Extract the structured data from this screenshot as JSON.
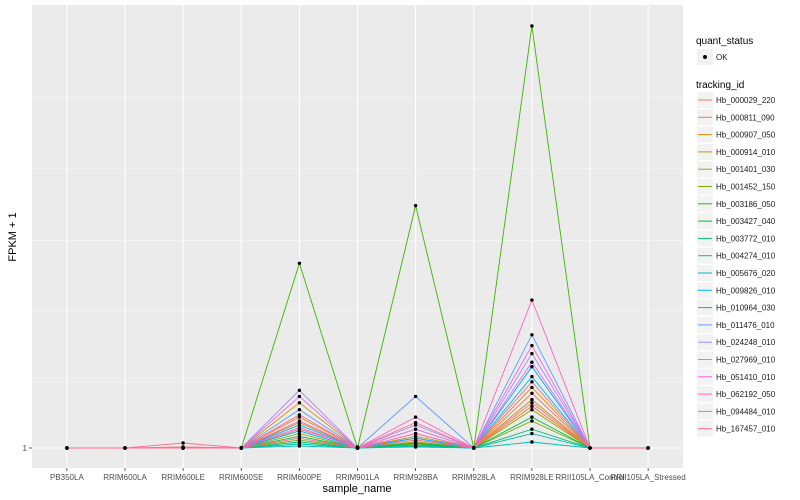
{
  "chart_data": {
    "type": "line",
    "xlabel": "sample_name",
    "ylabel": "FPKM + 1",
    "y_tick_labels": [
      "1"
    ],
    "categories": [
      "PB350LA",
      "RRIM600LA",
      "RRIM600LE",
      "RRIM600SE",
      "RRIM600PE",
      "RRIM901LA",
      "RRIM928BA",
      "RRIM928LA",
      "RRIM928LE",
      "RRII105LA_Control",
      "RRII105LA_Stressed"
    ],
    "y_scale": "log",
    "grid": true,
    "legend_position": "right",
    "legend_quant": {
      "title": "quant_status",
      "entries": [
        "OK"
      ]
    },
    "legend_tracking": {
      "title": "tracking_id"
    },
    "series": [
      {
        "name": "Hb_000029_220",
        "color": "#F8766D",
        "values": [
          1,
          1,
          1.01,
          1,
          1.2,
          1.01,
          1.1,
          1,
          1.7,
          1,
          1
        ]
      },
      {
        "name": "Hb_000811_090",
        "color": "#EA8331",
        "values": [
          1,
          1,
          1,
          1,
          1.35,
          1,
          1.15,
          1,
          1.5,
          1,
          1
        ]
      },
      {
        "name": "Hb_000907_050",
        "color": "#D89000",
        "values": [
          1,
          1,
          1,
          1,
          1.55,
          1,
          1.2,
          1,
          1.8,
          1,
          1
        ]
      },
      {
        "name": "Hb_000914_010",
        "color": "#C09B00",
        "values": [
          1,
          1,
          1,
          1,
          1.28,
          1,
          1.12,
          1,
          1.6,
          1,
          1
        ]
      },
      {
        "name": "Hb_001401_030",
        "color": "#A3A500",
        "values": [
          1,
          1,
          1,
          1,
          1.15,
          1,
          1.06,
          1,
          1.45,
          1,
          1
        ]
      },
      {
        "name": "Hb_001452_150",
        "color": "#7CAE00",
        "values": [
          1,
          1,
          1,
          1,
          1.08,
          1,
          1.04,
          1,
          1.3,
          1,
          1
        ]
      },
      {
        "name": "Hb_003186_050",
        "color": "#39B600",
        "values": [
          1,
          1,
          1,
          1,
          6.0,
          1,
          10.5,
          1,
          60.0,
          1,
          1
        ]
      },
      {
        "name": "Hb_003427_040",
        "color": "#00BB4E",
        "values": [
          1,
          1,
          1,
          1,
          1.12,
          1,
          1.05,
          1,
          1.35,
          1,
          1
        ]
      },
      {
        "name": "Hb_003772_010",
        "color": "#00BF7D",
        "values": [
          1,
          1,
          1,
          1,
          1.06,
          1,
          1.03,
          1,
          1.2,
          1,
          1
        ]
      },
      {
        "name": "Hb_004274_010",
        "color": "#00C1A3",
        "values": [
          1,
          1,
          1,
          1,
          1.04,
          1,
          1.02,
          1,
          1.15,
          1,
          1
        ]
      },
      {
        "name": "Hb_005676_020",
        "color": "#00BFC4",
        "values": [
          1,
          1,
          1,
          1,
          1.02,
          1,
          1.01,
          1,
          1.06,
          1,
          1
        ]
      },
      {
        "name": "Hb_009826_010",
        "color": "#00B8E5",
        "values": [
          1,
          1,
          1,
          1,
          1.18,
          1,
          1.08,
          1,
          2.0,
          1,
          1
        ]
      },
      {
        "name": "Hb_010964_030",
        "color": "#00ABFD",
        "values": [
          1,
          1,
          1,
          1,
          1.25,
          1,
          1.1,
          1,
          2.2,
          1,
          1
        ]
      },
      {
        "name": "Hb_011476_010",
        "color": "#619CFF",
        "values": [
          1,
          1,
          1,
          1,
          1.45,
          1,
          1.65,
          1,
          3.0,
          1,
          1
        ]
      },
      {
        "name": "Hb_024248_010",
        "color": "#A58AFF",
        "values": [
          1,
          1,
          1,
          1,
          1.75,
          1,
          1.25,
          1,
          2.5,
          1,
          1
        ]
      },
      {
        "name": "Hb_027969_010",
        "color": "#DF70F8",
        "values": [
          1,
          1,
          1,
          1,
          1.65,
          1,
          1.2,
          1,
          2.3,
          1,
          1
        ]
      },
      {
        "name": "Hb_051410_010",
        "color": "#F863DF",
        "values": [
          1,
          1,
          1,
          1,
          1.22,
          1,
          1.15,
          1,
          2.7,
          1,
          1
        ]
      },
      {
        "name": "Hb_062192_050",
        "color": "#FF62BC",
        "values": [
          1,
          1,
          1,
          1,
          1.3,
          1,
          1.35,
          1,
          4.2,
          1,
          1
        ]
      },
      {
        "name": "Hb_094484_010",
        "color": "#FF6C91",
        "values": [
          1,
          1,
          1.05,
          1,
          1.38,
          1,
          1.28,
          1,
          1.9,
          1,
          1
        ]
      },
      {
        "name": "Hb_167457_010",
        "color": "#FF6C91",
        "values": [
          1,
          1,
          1,
          1,
          1.1,
          1,
          1.08,
          1,
          1.55,
          1,
          1
        ]
      }
    ]
  }
}
